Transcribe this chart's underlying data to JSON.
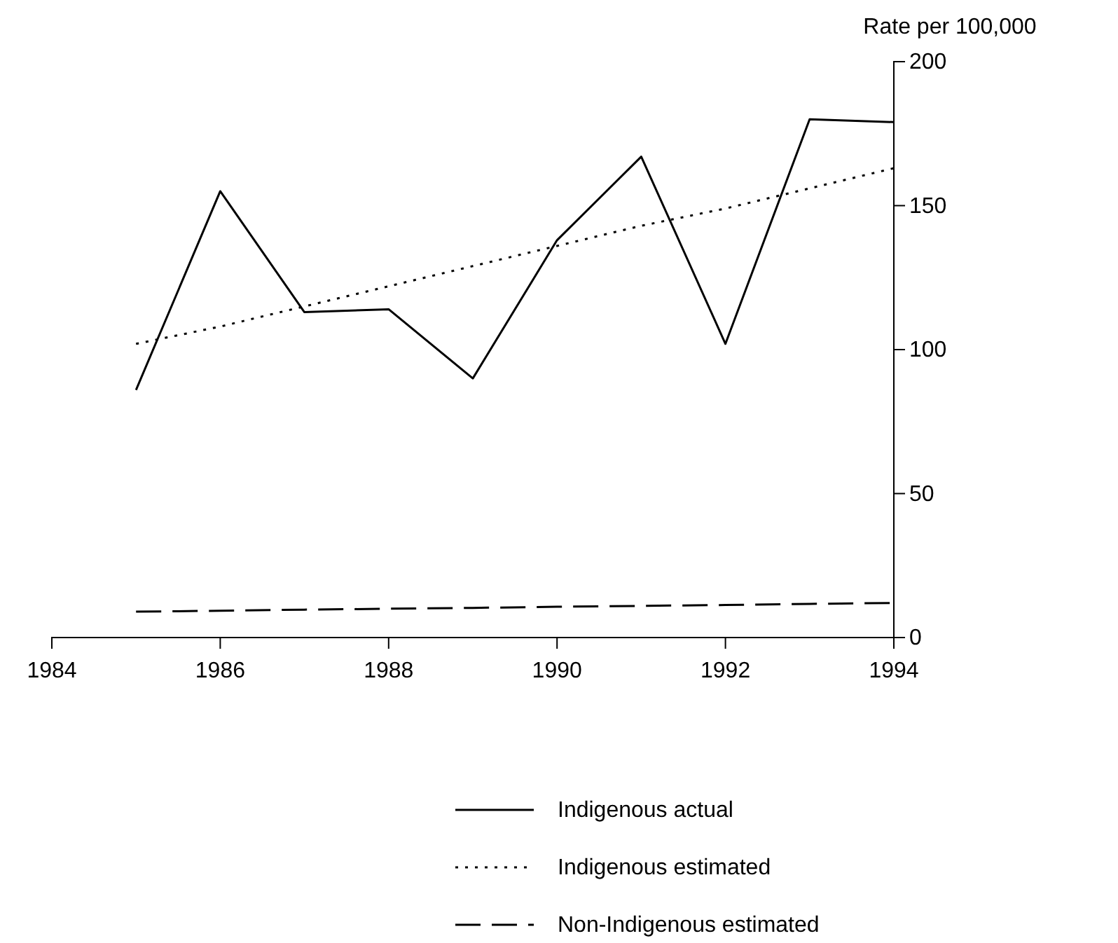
{
  "chart_data": {
    "type": "line",
    "ylabel": "Rate per 100,000",
    "x": [
      1985,
      1986,
      1987,
      1988,
      1989,
      1990,
      1991,
      1992,
      1993,
      1994
    ],
    "xlim": [
      1984,
      1994
    ],
    "xticks": [
      1984,
      1986,
      1988,
      1990,
      1992,
      1994
    ],
    "ylim": [
      0,
      200
    ],
    "yticks": [
      0,
      50,
      100,
      150,
      200
    ],
    "grid": false,
    "legend": "bottom",
    "marker": "none",
    "series": [
      {
        "name": "Indigenous actual",
        "color": "#000000",
        "line_style": "solid",
        "values": [
          86,
          155,
          113,
          114,
          90,
          138,
          167,
          102,
          180,
          179
        ]
      },
      {
        "name": "Indigenous estimated",
        "color": "#000000",
        "line_style": "dotted",
        "values": [
          102,
          108,
          115,
          122,
          129,
          136,
          143,
          149,
          156,
          163
        ]
      },
      {
        "name": "Non-Indigenous estimated",
        "color": "#000000",
        "line_style": "dashed",
        "values": [
          9,
          9.3,
          9.7,
          10,
          10.3,
          10.7,
          11,
          11.3,
          11.7,
          12
        ]
      }
    ]
  }
}
